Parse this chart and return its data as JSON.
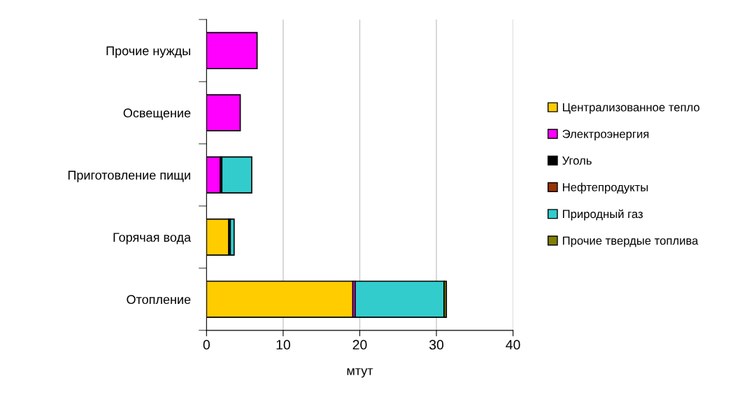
{
  "chart_data": {
    "type": "bar",
    "orientation": "horizontal",
    "stacked": true,
    "categories": [
      "Прочие нужды",
      "Освещение",
      "Приготовление пищи",
      "Горячая вода",
      "Отопление"
    ],
    "series": [
      {
        "name": "Централизованное тепло",
        "color": "#ffcc00",
        "values": [
          0,
          0,
          0,
          2.9,
          19.1
        ]
      },
      {
        "name": "Электроэнергия",
        "color": "#ff00ff",
        "values": [
          6.6,
          4.4,
          1.8,
          0,
          0.3
        ]
      },
      {
        "name": "Уголь",
        "color": "#000000",
        "values": [
          0,
          0,
          0.2,
          0.2,
          0
        ]
      },
      {
        "name": "Нефтепродукты",
        "color": "#993300",
        "values": [
          0,
          0,
          0,
          0,
          0
        ]
      },
      {
        "name": "Природный газ",
        "color": "#33cccc",
        "values": [
          0,
          0,
          3.9,
          0.5,
          11.6
        ]
      },
      {
        "name": "Прочие твердые топлива",
        "color": "#808000",
        "values": [
          0,
          0,
          0,
          0,
          0.3
        ]
      }
    ],
    "xlabel": "мтут",
    "xlim": [
      0,
      40
    ],
    "xticks": [
      0,
      10,
      20,
      30,
      40
    ],
    "grid": "x",
    "legend": "right"
  }
}
